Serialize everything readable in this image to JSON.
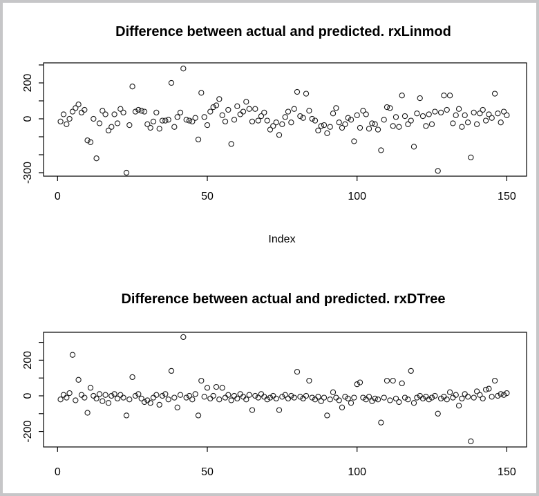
{
  "page": {
    "background": "#ffffff",
    "border_color": "#c6c6c8",
    "point_color": "#000000",
    "marker": "open-circle"
  },
  "chart_data": [
    {
      "type": "scatter",
      "title": "Difference between actual and predicted. rxLinmod",
      "xlabel": "Index",
      "ylabel": "",
      "xlim": [
        -5,
        156
      ],
      "ylim": [
        -310,
        310
      ],
      "xticks": [
        {
          "v": 0,
          "label": "0"
        },
        {
          "v": 50,
          "label": "50"
        },
        {
          "v": 100,
          "label": "100"
        },
        {
          "v": 150,
          "label": "150"
        }
      ],
      "yticks": [
        {
          "v": 300,
          "label": ""
        },
        {
          "v": 200,
          "label": "200"
        },
        {
          "v": 100,
          "label": ""
        },
        {
          "v": 0,
          "label": "0"
        },
        {
          "v": -100,
          "label": ""
        },
        {
          "v": -200,
          "label": ""
        },
        {
          "v": -300,
          "label": "-300"
        }
      ],
      "legend": null,
      "grid": false,
      "points": [
        [
          1,
          -15
        ],
        [
          2,
          25
        ],
        [
          3,
          -30
        ],
        [
          4,
          0
        ],
        [
          5,
          40
        ],
        [
          6,
          60
        ],
        [
          7,
          80
        ],
        [
          8,
          35
        ],
        [
          9,
          50
        ],
        [
          10,
          -120
        ],
        [
          11,
          -130
        ],
        [
          12,
          0
        ],
        [
          13,
          -220
        ],
        [
          14,
          -25
        ],
        [
          15,
          45
        ],
        [
          16,
          25
        ],
        [
          17,
          -65
        ],
        [
          18,
          -45
        ],
        [
          19,
          25
        ],
        [
          20,
          -25
        ],
        [
          21,
          55
        ],
        [
          22,
          35
        ],
        [
          23,
          -300
        ],
        [
          24,
          -35
        ],
        [
          25,
          180
        ],
        [
          26,
          40
        ],
        [
          27,
          50
        ],
        [
          28,
          45
        ],
        [
          29,
          40
        ],
        [
          30,
          -30
        ],
        [
          31,
          -50
        ],
        [
          32,
          -15
        ],
        [
          33,
          35
        ],
        [
          34,
          -55
        ],
        [
          35,
          -10
        ],
        [
          36,
          -10
        ],
        [
          37,
          -5
        ],
        [
          38,
          200
        ],
        [
          39,
          -45
        ],
        [
          40,
          10
        ],
        [
          41,
          35
        ],
        [
          42,
          280
        ],
        [
          43,
          -5
        ],
        [
          44,
          -10
        ],
        [
          45,
          -15
        ],
        [
          46,
          5
        ],
        [
          47,
          -115
        ],
        [
          48,
          145
        ],
        [
          49,
          10
        ],
        [
          50,
          -35
        ],
        [
          51,
          40
        ],
        [
          52,
          65
        ],
        [
          53,
          75
        ],
        [
          54,
          110
        ],
        [
          55,
          20
        ],
        [
          56,
          -15
        ],
        [
          57,
          50
        ],
        [
          58,
          -140
        ],
        [
          59,
          -5
        ],
        [
          60,
          70
        ],
        [
          61,
          25
        ],
        [
          62,
          40
        ],
        [
          63,
          95
        ],
        [
          64,
          55
        ],
        [
          65,
          -15
        ],
        [
          66,
          55
        ],
        [
          67,
          -10
        ],
        [
          68,
          15
        ],
        [
          69,
          35
        ],
        [
          70,
          -10
        ],
        [
          71,
          -60
        ],
        [
          72,
          -40
        ],
        [
          73,
          -20
        ],
        [
          74,
          -90
        ],
        [
          75,
          -30
        ],
        [
          76,
          10
        ],
        [
          77,
          40
        ],
        [
          78,
          -20
        ],
        [
          79,
          55
        ],
        [
          80,
          150
        ],
        [
          81,
          15
        ],
        [
          82,
          5
        ],
        [
          83,
          140
        ],
        [
          84,
          45
        ],
        [
          85,
          0
        ],
        [
          86,
          -10
        ],
        [
          87,
          -65
        ],
        [
          88,
          -40
        ],
        [
          89,
          -35
        ],
        [
          90,
          -80
        ],
        [
          91,
          -45
        ],
        [
          92,
          30
        ],
        [
          93,
          60
        ],
        [
          94,
          -20
        ],
        [
          95,
          -50
        ],
        [
          96,
          -30
        ],
        [
          97,
          5
        ],
        [
          98,
          -5
        ],
        [
          99,
          -125
        ],
        [
          100,
          20
        ],
        [
          101,
          -50
        ],
        [
          102,
          45
        ],
        [
          103,
          25
        ],
        [
          104,
          -55
        ],
        [
          105,
          -25
        ],
        [
          106,
          -30
        ],
        [
          107,
          -60
        ],
        [
          108,
          -175
        ],
        [
          109,
          -5
        ],
        [
          110,
          65
        ],
        [
          111,
          60
        ],
        [
          112,
          -40
        ],
        [
          113,
          10
        ],
        [
          114,
          -45
        ],
        [
          115,
          130
        ],
        [
          116,
          15
        ],
        [
          117,
          -30
        ],
        [
          118,
          -10
        ],
        [
          119,
          -155
        ],
        [
          120,
          30
        ],
        [
          121,
          115
        ],
        [
          122,
          15
        ],
        [
          123,
          -40
        ],
        [
          124,
          25
        ],
        [
          125,
          -30
        ],
        [
          126,
          40
        ],
        [
          127,
          -290
        ],
        [
          128,
          35
        ],
        [
          129,
          130
        ],
        [
          130,
          50
        ],
        [
          131,
          130
        ],
        [
          132,
          -25
        ],
        [
          133,
          20
        ],
        [
          134,
          55
        ],
        [
          135,
          -45
        ],
        [
          136,
          20
        ],
        [
          137,
          -20
        ],
        [
          138,
          -215
        ],
        [
          139,
          35
        ],
        [
          140,
          -30
        ],
        [
          141,
          30
        ],
        [
          142,
          50
        ],
        [
          143,
          -10
        ],
        [
          144,
          25
        ],
        [
          145,
          5
        ],
        [
          146,
          140
        ],
        [
          147,
          30
        ],
        [
          148,
          -20
        ],
        [
          149,
          40
        ],
        [
          150,
          20
        ]
      ]
    },
    {
      "type": "scatter",
      "title": "Difference between actual and predicted. rxDTree",
      "xlabel": "",
      "ylabel": "",
      "xlim": [
        -5,
        156
      ],
      "ylim": [
        -290,
        360
      ],
      "xticks": [
        {
          "v": 0,
          "label": "0"
        },
        {
          "v": 50,
          "label": "50"
        },
        {
          "v": 100,
          "label": "100"
        },
        {
          "v": 150,
          "label": "150"
        }
      ],
      "yticks": [
        {
          "v": 300,
          "label": ""
        },
        {
          "v": 200,
          "label": "200"
        },
        {
          "v": 100,
          "label": ""
        },
        {
          "v": 0,
          "label": "0"
        },
        {
          "v": -100,
          "label": ""
        },
        {
          "v": -200,
          "label": "-200"
        }
      ],
      "legend": null,
      "grid": false,
      "points": [
        [
          1,
          -20
        ],
        [
          2,
          5
        ],
        [
          3,
          -10
        ],
        [
          4,
          15
        ],
        [
          5,
          230
        ],
        [
          6,
          -25
        ],
        [
          7,
          90
        ],
        [
          8,
          5
        ],
        [
          9,
          -10
        ],
        [
          10,
          -95
        ],
        [
          11,
          45
        ],
        [
          12,
          0
        ],
        [
          13,
          -15
        ],
        [
          14,
          10
        ],
        [
          15,
          -30
        ],
        [
          16,
          5
        ],
        [
          17,
          -40
        ],
        [
          18,
          0
        ],
        [
          19,
          10
        ],
        [
          20,
          -15
        ],
        [
          21,
          5
        ],
        [
          22,
          -10
        ],
        [
          23,
          -110
        ],
        [
          24,
          -20
        ],
        [
          25,
          105
        ],
        [
          26,
          0
        ],
        [
          27,
          10
        ],
        [
          28,
          -15
        ],
        [
          29,
          -35
        ],
        [
          30,
          -25
        ],
        [
          31,
          -40
        ],
        [
          32,
          -10
        ],
        [
          33,
          5
        ],
        [
          34,
          -50
        ],
        [
          35,
          0
        ],
        [
          36,
          10
        ],
        [
          37,
          -20
        ],
        [
          38,
          140
        ],
        [
          39,
          -10
        ],
        [
          40,
          -65
        ],
        [
          41,
          5
        ],
        [
          42,
          330
        ],
        [
          43,
          -10
        ],
        [
          44,
          0
        ],
        [
          45,
          -20
        ],
        [
          46,
          10
        ],
        [
          47,
          -110
        ],
        [
          48,
          85
        ],
        [
          49,
          -5
        ],
        [
          50,
          45
        ],
        [
          51,
          -15
        ],
        [
          52,
          0
        ],
        [
          53,
          50
        ],
        [
          54,
          -20
        ],
        [
          55,
          45
        ],
        [
          56,
          -10
        ],
        [
          57,
          5
        ],
        [
          58,
          -25
        ],
        [
          59,
          0
        ],
        [
          60,
          -15
        ],
        [
          61,
          10
        ],
        [
          62,
          -5
        ],
        [
          63,
          -20
        ],
        [
          64,
          5
        ],
        [
          65,
          -80
        ],
        [
          66,
          0
        ],
        [
          67,
          -10
        ],
        [
          68,
          10
        ],
        [
          69,
          -5
        ],
        [
          70,
          -20
        ],
        [
          71,
          -10
        ],
        [
          72,
          0
        ],
        [
          73,
          -15
        ],
        [
          74,
          -80
        ],
        [
          75,
          -5
        ],
        [
          76,
          5
        ],
        [
          77,
          -15
        ],
        [
          78,
          0
        ],
        [
          79,
          -10
        ],
        [
          80,
          135
        ],
        [
          81,
          -5
        ],
        [
          82,
          -15
        ],
        [
          83,
          0
        ],
        [
          84,
          85
        ],
        [
          85,
          -10
        ],
        [
          86,
          -20
        ],
        [
          87,
          -5
        ],
        [
          88,
          -30
        ],
        [
          89,
          -10
        ],
        [
          90,
          -110
        ],
        [
          91,
          -20
        ],
        [
          92,
          20
        ],
        [
          93,
          -10
        ],
        [
          94,
          -25
        ],
        [
          95,
          -65
        ],
        [
          96,
          -5
        ],
        [
          97,
          -15
        ],
        [
          98,
          -40
        ],
        [
          99,
          -10
        ],
        [
          100,
          65
        ],
        [
          101,
          75
        ],
        [
          102,
          -10
        ],
        [
          103,
          -20
        ],
        [
          104,
          -5
        ],
        [
          105,
          -30
        ],
        [
          106,
          -15
        ],
        [
          107,
          -20
        ],
        [
          108,
          -150
        ],
        [
          109,
          -10
        ],
        [
          110,
          85
        ],
        [
          111,
          -25
        ],
        [
          112,
          85
        ],
        [
          113,
          -15
        ],
        [
          114,
          -35
        ],
        [
          115,
          70
        ],
        [
          116,
          -10
        ],
        [
          117,
          -20
        ],
        [
          118,
          140
        ],
        [
          119,
          -40
        ],
        [
          120,
          -10
        ],
        [
          121,
          0
        ],
        [
          122,
          -15
        ],
        [
          123,
          -5
        ],
        [
          124,
          -20
        ],
        [
          125,
          -10
        ],
        [
          126,
          0
        ],
        [
          127,
          -100
        ],
        [
          128,
          -15
        ],
        [
          129,
          -5
        ],
        [
          130,
          -20
        ],
        [
          131,
          20
        ],
        [
          132,
          -10
        ],
        [
          133,
          5
        ],
        [
          134,
          -55
        ],
        [
          135,
          -15
        ],
        [
          136,
          10
        ],
        [
          137,
          -5
        ],
        [
          138,
          -255
        ],
        [
          139,
          -10
        ],
        [
          140,
          25
        ],
        [
          141,
          5
        ],
        [
          142,
          -15
        ],
        [
          143,
          35
        ],
        [
          144,
          40
        ],
        [
          145,
          -5
        ],
        [
          146,
          85
        ],
        [
          147,
          0
        ],
        [
          148,
          10
        ],
        [
          149,
          5
        ],
        [
          150,
          15
        ]
      ]
    }
  ]
}
